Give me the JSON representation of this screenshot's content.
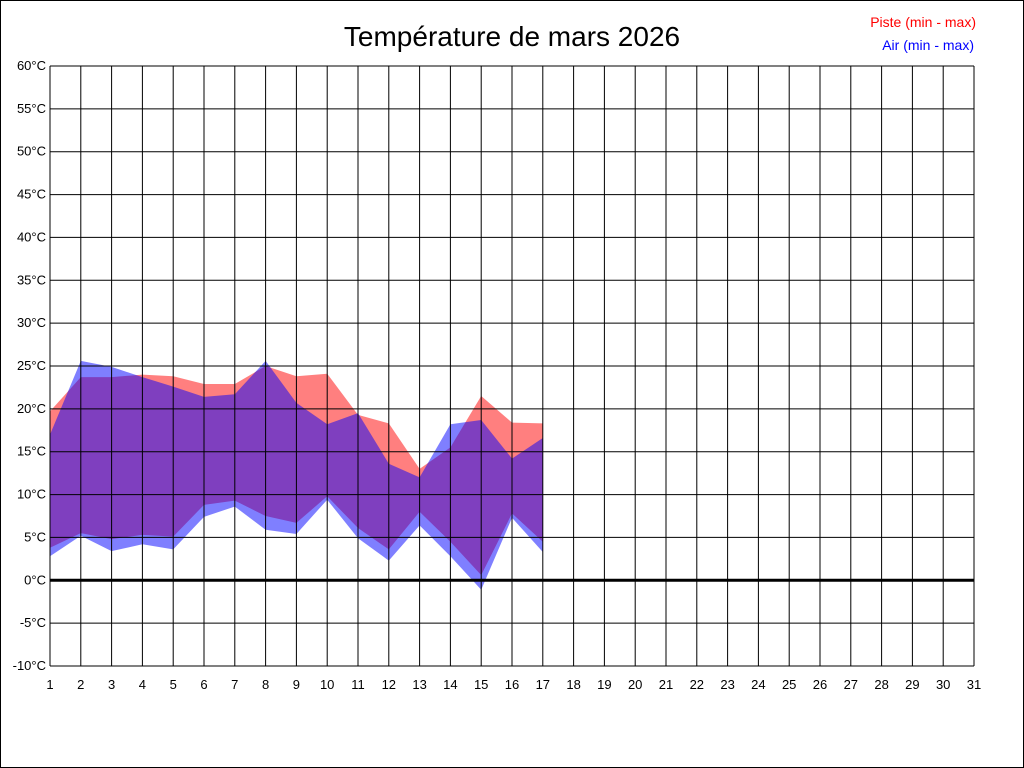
{
  "chart_data": {
    "type": "area",
    "title": "Température de mars 2026",
    "unit": "°C",
    "xlim": [
      1,
      31
    ],
    "ylim": [
      -10,
      60
    ],
    "y_step": 5,
    "grid": true,
    "legend_position": "top-right",
    "x": [
      1,
      2,
      3,
      4,
      5,
      6,
      7,
      8,
      9,
      10,
      11,
      12,
      13,
      14,
      15,
      16,
      17
    ],
    "series": [
      {
        "name": "Piste (min - max)",
        "color": "#ff0000",
        "min": [
          3.8,
          5.5,
          4.8,
          5.3,
          5.1,
          8.8,
          9.3,
          7.5,
          6.7,
          9.8,
          6.1,
          3.6,
          8.0,
          4.5,
          0.6,
          7.8,
          4.5
        ],
        "max": [
          19.7,
          23.7,
          23.7,
          24.0,
          23.8,
          22.9,
          22.9,
          25.0,
          23.8,
          24.1,
          19.3,
          18.3,
          13.0,
          15.5,
          21.5,
          18.4,
          18.3
        ]
      },
      {
        "name": "Air (min - max)",
        "color": "#0000ff",
        "min": [
          2.8,
          5.2,
          3.4,
          4.2,
          3.6,
          7.4,
          8.6,
          5.9,
          5.4,
          9.4,
          4.9,
          2.3,
          6.4,
          2.8,
          -1.1,
          7.3,
          3.3
        ],
        "max": [
          17.0,
          25.6,
          24.9,
          23.7,
          22.6,
          21.4,
          21.7,
          25.6,
          20.7,
          18.2,
          19.5,
          13.6,
          12.0,
          18.2,
          18.7,
          14.2,
          16.6
        ]
      }
    ]
  }
}
